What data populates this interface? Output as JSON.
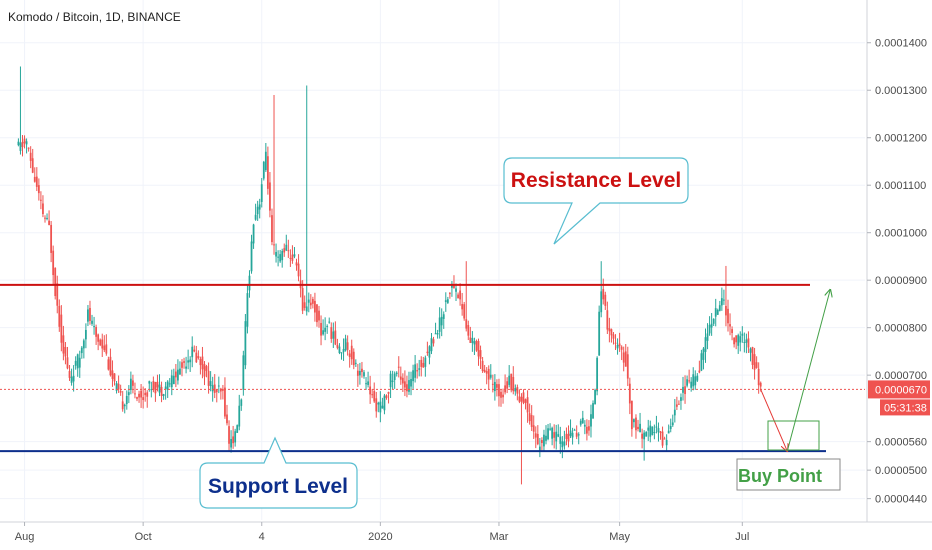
{
  "chart_data": {
    "type": "candlestick",
    "title": "Komodo / Bitcoin, 1D, BINANCE",
    "y_ticks": [
      4.4e-05,
      5e-05,
      5.6e-05,
      7e-05,
      8e-05,
      9e-05,
      0.0001,
      0.00011,
      0.00012,
      0.00013,
      0.00014
    ],
    "y_tick_labels": [
      "0.0000440",
      "0.0000500",
      "0.0000560",
      "0.0000700",
      "0.0000800",
      "0.0000900",
      "0.0001000",
      "0.0001100",
      "0.0001200",
      "0.0001300",
      "0.0001400"
    ],
    "x_tick_labels": [
      "Aug",
      "Oct",
      "4",
      "2020",
      "Mar",
      "May",
      "Jul"
    ],
    "ylim": [
      3.95e-05,
      0.000149
    ],
    "price_path": [
      [
        0,
        0.000118
      ],
      [
        4,
        0.000119
      ],
      [
        8,
        0.000111
      ],
      [
        12,
        0.000104
      ],
      [
        15,
        0.000101
      ],
      [
        18,
        8.8e-05
      ],
      [
        21,
        7.8e-05
      ],
      [
        25,
        6.9e-05
      ],
      [
        30,
        7.4e-05
      ],
      [
        34,
        8.3e-05
      ],
      [
        38,
        7.8e-05
      ],
      [
        42,
        7.6e-05
      ],
      [
        46,
        6.9e-05
      ],
      [
        51,
        6.4e-05
      ],
      [
        55,
        6.8e-05
      ],
      [
        60,
        6.5e-05
      ],
      [
        65,
        6.8e-05
      ],
      [
        70,
        6.7e-05
      ],
      [
        75,
        6.9e-05
      ],
      [
        80,
        7.2e-05
      ],
      [
        85,
        7.5e-05
      ],
      [
        90,
        7.2e-05
      ],
      [
        95,
        6.7e-05
      ],
      [
        100,
        6.6e-05
      ],
      [
        103,
        5.6e-05
      ],
      [
        106,
        5.7e-05
      ],
      [
        109,
        6.6e-05
      ],
      [
        112,
        8.7e-05
      ],
      [
        115,
        0.000103
      ],
      [
        118,
        0.000107
      ],
      [
        121,
        0.000117
      ],
      [
        124,
        9.7e-05
      ],
      [
        127,
        9.4e-05
      ],
      [
        130,
        9.7e-05
      ],
      [
        133,
        9.5e-05
      ],
      [
        136,
        9.4e-05
      ],
      [
        139,
        8.4e-05
      ],
      [
        142,
        8.6e-05
      ],
      [
        145,
        8.4e-05
      ],
      [
        148,
        7.9e-05
      ],
      [
        151,
        8.1e-05
      ],
      [
        154,
        7.8e-05
      ],
      [
        157,
        7.5e-05
      ],
      [
        160,
        7.7e-05
      ],
      [
        163,
        7.4e-05
      ],
      [
        166,
        7.1e-05
      ],
      [
        170,
        6.9e-05
      ],
      [
        174,
        6.4e-05
      ],
      [
        178,
        6.3e-05
      ],
      [
        182,
        6.9e-05
      ],
      [
        186,
        7.1e-05
      ],
      [
        190,
        6.7e-05
      ],
      [
        194,
        7.1e-05
      ],
      [
        198,
        7.3e-05
      ],
      [
        202,
        7.7e-05
      ],
      [
        206,
        8.1e-05
      ],
      [
        210,
        8.7e-05
      ],
      [
        213,
        8.9e-05
      ],
      [
        216,
        8.6e-05
      ],
      [
        220,
        7.8e-05
      ],
      [
        224,
        7.6e-05
      ],
      [
        228,
        7.1e-05
      ],
      [
        232,
        6.8e-05
      ],
      [
        236,
        6.6e-05
      ],
      [
        240,
        6.9e-05
      ],
      [
        244,
        6.6e-05
      ],
      [
        248,
        6.4e-05
      ],
      [
        251,
        6e-05
      ],
      [
        254,
        5.5e-05
      ],
      [
        257,
        5.7e-05
      ],
      [
        261,
        5.8e-05
      ],
      [
        265,
        5.6e-05
      ],
      [
        269,
        5.7e-05
      ],
      [
        273,
        5.8e-05
      ],
      [
        276,
        6e-05
      ],
      [
        279,
        5.8e-05
      ],
      [
        282,
        6.8e-05
      ],
      [
        285,
        8.9e-05
      ],
      [
        288,
        8.1e-05
      ],
      [
        291,
        7.7e-05
      ],
      [
        294,
        7.5e-05
      ],
      [
        297,
        7.3e-05
      ],
      [
        300,
        6e-05
      ],
      [
        303,
        5.9e-05
      ],
      [
        306,
        5.7e-05
      ],
      [
        309,
        5.8e-05
      ],
      [
        312,
        5.9e-05
      ],
      [
        315,
        5.6e-05
      ],
      [
        318,
        5.8e-05
      ],
      [
        321,
        6.3e-05
      ],
      [
        324,
        6.6e-05
      ],
      [
        327,
        6.8e-05
      ],
      [
        330,
        6.9e-05
      ],
      [
        333,
        7.2e-05
      ],
      [
        336,
        7.7e-05
      ],
      [
        339,
        8.2e-05
      ],
      [
        342,
        8.4e-05
      ],
      [
        345,
        8.6e-05
      ],
      [
        348,
        7.9e-05
      ],
      [
        351,
        7.7e-05
      ],
      [
        354,
        7.8e-05
      ],
      [
        357,
        7.6e-05
      ],
      [
        360,
        7.2e-05
      ],
      [
        363,
        6.7e-05
      ]
    ],
    "spikes": [
      {
        "t": 1,
        "high": 0.000135
      },
      {
        "t": 125,
        "high": 0.000129
      },
      {
        "t": 141,
        "high": 0.000131
      },
      {
        "t": 219,
        "high": 9.4e-05
      },
      {
        "t": 246,
        "low": 4.7e-05
      },
      {
        "t": 285,
        "high": 9.4e-05
      },
      {
        "t": 306,
        "low": 5.2e-05
      },
      {
        "t": 346,
        "high": 9.3e-05
      }
    ],
    "resistance_level": 8.9e-05,
    "support_level": 5.4e-05,
    "current_price": 6.7e-05,
    "current_price_label": "0.0000670",
    "countdown_label": "05:31:38",
    "annotations": {
      "resistance_label": "Resistance Level",
      "support_label": "Support Level",
      "buy_label": "Buy Point"
    },
    "forecast_path": [
      [
        363,
        6.7e-05
      ],
      [
        376,
        5.4e-05
      ],
      [
        397,
        8.8e-05
      ]
    ],
    "colors": {
      "up": "#26a69a",
      "down": "#ef5350",
      "resistance": "#cc1111",
      "support": "#0d2f8c",
      "forecast_down": "#e53935",
      "forecast_up": "#43a047",
      "callout_border": "#58bdd0",
      "buy_border": "#43a047",
      "price_badge": "#ef5350"
    }
  }
}
